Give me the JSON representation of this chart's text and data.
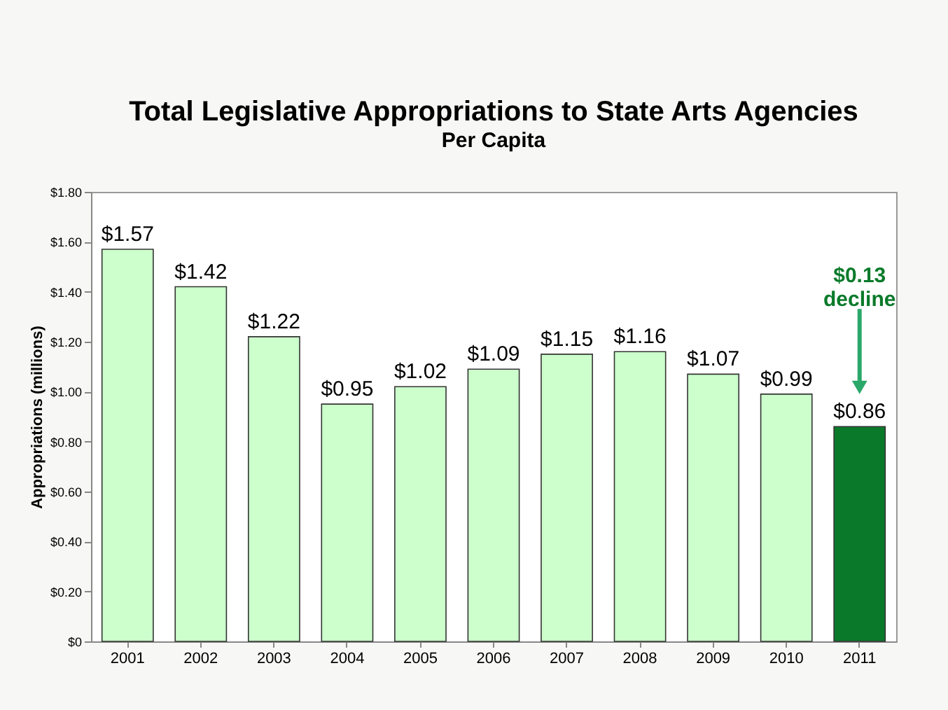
{
  "chart_data": {
    "type": "bar",
    "title": "Total Legislative Appropriations to State Arts Agencies",
    "subtitle": "Per Capita",
    "ylabel": "Appropriations (millions)",
    "categories": [
      "2001",
      "2002",
      "2003",
      "2004",
      "2005",
      "2006",
      "2007",
      "2008",
      "2009",
      "2010",
      "2011"
    ],
    "values": [
      1.57,
      1.42,
      1.22,
      0.95,
      1.02,
      1.09,
      1.15,
      1.16,
      1.07,
      0.99,
      0.86
    ],
    "colors": [
      "#ccffcc",
      "#ccffcc",
      "#ccffcc",
      "#ccffcc",
      "#ccffcc",
      "#ccffcc",
      "#ccffcc",
      "#ccffcc",
      "#ccffcc",
      "#ccffcc",
      "#0a7a2a"
    ],
    "value_labels": [
      "$1.57",
      "$1.42",
      "$1.22",
      "$0.95",
      "$1.02",
      "$1.09",
      "$1.15",
      "$1.16",
      "$1.07",
      "$0.99",
      "$0.86"
    ],
    "ylim": [
      0,
      1.8
    ],
    "yticks": [
      {
        "value": 0,
        "label": "$0"
      },
      {
        "value": 0.2,
        "label": "$0.20"
      },
      {
        "value": 0.4,
        "label": "$0.40"
      },
      {
        "value": 0.6,
        "label": "$0.60"
      },
      {
        "value": 0.8,
        "label": "$0.80"
      },
      {
        "value": 1.0,
        "label": "$1.00"
      },
      {
        "value": 1.2,
        "label": "$1.20"
      },
      {
        "value": 1.4,
        "label": "$1.40"
      },
      {
        "value": 1.6,
        "label": "$1.60"
      },
      {
        "value": 1.8,
        "label": "$1.80"
      }
    ],
    "annotations": [
      "$0.13 decline"
    ]
  }
}
